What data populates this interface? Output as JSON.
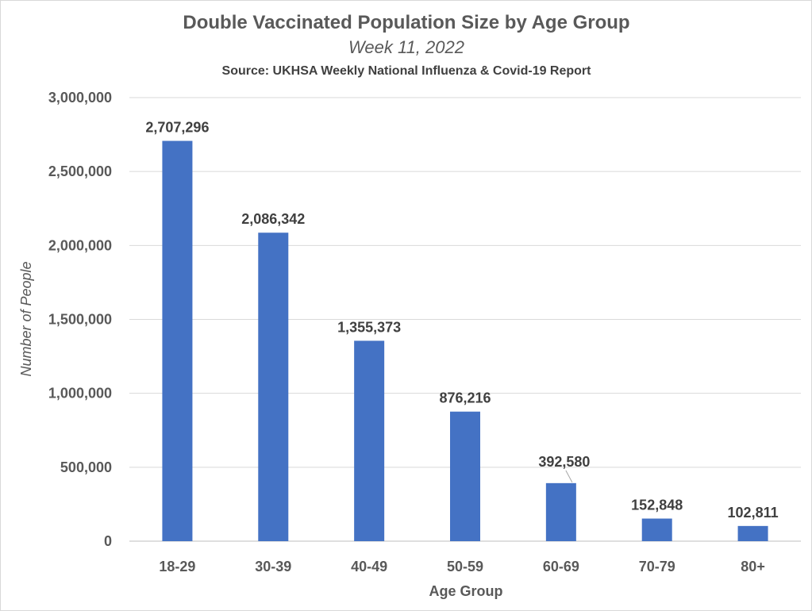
{
  "chart_data": {
    "type": "bar",
    "title": "Double Vaccinated Population Size by Age Group",
    "subtitle": "Week 11, 2022",
    "source": "Source: UKHSA Weekly National Influenza & Covid-19 Report",
    "xlabel": "Age Group",
    "ylabel": "Number of People",
    "categories": [
      "18-29",
      "30-39",
      "40-49",
      "50-59",
      "60-69",
      "70-79",
      "80+"
    ],
    "values": [
      2707296,
      2086342,
      1355373,
      876216,
      392580,
      152848,
      102811
    ],
    "value_labels": [
      "2,707,296",
      "2,086,342",
      "1,355,373",
      "876,216",
      "392,580",
      "152,848",
      "102,811"
    ],
    "ylim": [
      0,
      3000000
    ],
    "y_ticks": [
      0,
      500000,
      1000000,
      1500000,
      2000000,
      2500000,
      3000000
    ],
    "y_tick_labels": [
      "0",
      "500,000",
      "1,000,000",
      "1,500,000",
      "2,000,000",
      "2,500,000",
      "3,000,000"
    ],
    "grid": true,
    "legend": "none",
    "bar_color": "#4472c4"
  }
}
